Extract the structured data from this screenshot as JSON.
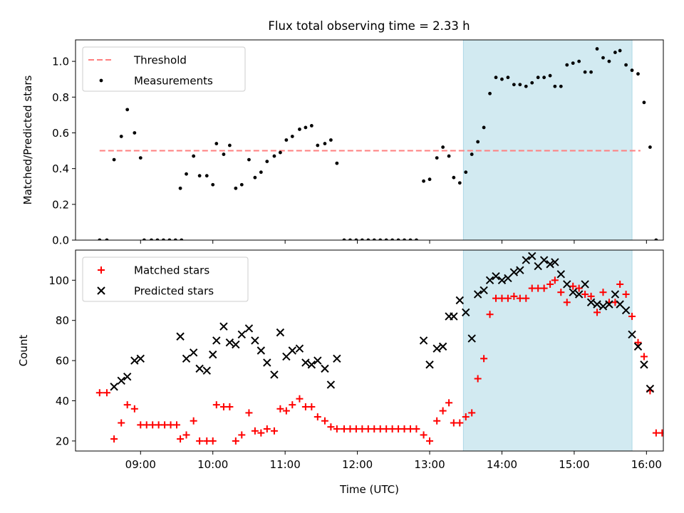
{
  "title": "Flux total observing time = 2.33 h",
  "colors": {
    "threshold": "#ff7f7f",
    "measurements": "#000000",
    "matched": "#ff0000",
    "predicted": "#000000",
    "highlight": "#add8e6"
  },
  "chart_data": [
    {
      "type": "scatter",
      "ylabel": "Matched/Predicted stars",
      "xlabel": "",
      "ylim": [
        0,
        1.12
      ],
      "xlim": [
        "08:06",
        "16:14"
      ],
      "yticks": [
        "0.0",
        "0.2",
        "0.4",
        "0.6",
        "0.8",
        "1.0"
      ],
      "legend": {
        "position": "upper-left",
        "entries": [
          "Threshold",
          "Measurements"
        ]
      },
      "threshold": {
        "name": "Threshold",
        "y": 0.5,
        "x_range": [
          "08:26",
          "15:55"
        ],
        "style": "dashed"
      },
      "highlight_span": [
        "13:28",
        "15:48"
      ],
      "series": [
        {
          "name": "Measurements",
          "points": [
            [
              "08:26",
              0
            ],
            [
              "08:32",
              0
            ],
            [
              "08:38",
              0.45
            ],
            [
              "08:44",
              0.58
            ],
            [
              "08:49",
              0.73
            ],
            [
              "08:55",
              0.6
            ],
            [
              "09:00",
              0.46
            ],
            [
              "09:03",
              0
            ],
            [
              "09:09",
              0
            ],
            [
              "09:14",
              0
            ],
            [
              "09:19",
              0
            ],
            [
              "09:24",
              0
            ],
            [
              "09:29",
              0
            ],
            [
              "09:34",
              0
            ],
            [
              "09:33",
              0.29
            ],
            [
              "09:38",
              0.37
            ],
            [
              "09:44",
              0.47
            ],
            [
              "09:49",
              0.36
            ],
            [
              "09:55",
              0.36
            ],
            [
              "10:00",
              0.31
            ],
            [
              "10:03",
              0.54
            ],
            [
              "10:09",
              0.48
            ],
            [
              "10:14",
              0.53
            ],
            [
              "10:19",
              0.29
            ],
            [
              "10:24",
              0.31
            ],
            [
              "10:30",
              0.45
            ],
            [
              "10:35",
              0.35
            ],
            [
              "10:40",
              0.38
            ],
            [
              "10:45",
              0.44
            ],
            [
              "10:51",
              0.47
            ],
            [
              "10:56",
              0.49
            ],
            [
              "11:01",
              0.56
            ],
            [
              "11:06",
              0.58
            ],
            [
              "11:12",
              0.62
            ],
            [
              "11:17",
              0.63
            ],
            [
              "11:22",
              0.64
            ],
            [
              "11:27",
              0.53
            ],
            [
              "11:33",
              0.54
            ],
            [
              "11:38",
              0.56
            ],
            [
              "11:43",
              0.43
            ],
            [
              "11:49",
              0
            ],
            [
              "11:54",
              0
            ],
            [
              "11:59",
              0
            ],
            [
              "12:04",
              0
            ],
            [
              "12:09",
              0
            ],
            [
              "12:14",
              0
            ],
            [
              "12:19",
              0
            ],
            [
              "12:24",
              0
            ],
            [
              "12:29",
              0
            ],
            [
              "12:34",
              0
            ],
            [
              "12:39",
              0
            ],
            [
              "12:44",
              0
            ],
            [
              "12:49",
              0
            ],
            [
              "12:55",
              0.33
            ],
            [
              "13:00",
              0.34
            ],
            [
              "13:06",
              0.46
            ],
            [
              "13:11",
              0.52
            ],
            [
              "13:16",
              0.47
            ],
            [
              "13:20",
              0.35
            ],
            [
              "13:25",
              0.32
            ],
            [
              "13:30",
              0.38
            ],
            [
              "13:35",
              0.48
            ],
            [
              "13:40",
              0.55
            ],
            [
              "13:45",
              0.63
            ],
            [
              "13:50",
              0.82
            ],
            [
              "13:55",
              0.91
            ],
            [
              "14:00",
              0.9
            ],
            [
              "14:05",
              0.91
            ],
            [
              "14:10",
              0.87
            ],
            [
              "14:15",
              0.87
            ],
            [
              "14:20",
              0.86
            ],
            [
              "14:25",
              0.88
            ],
            [
              "14:30",
              0.91
            ],
            [
              "14:35",
              0.91
            ],
            [
              "14:40",
              0.92
            ],
            [
              "14:44",
              0.86
            ],
            [
              "14:49",
              0.86
            ],
            [
              "14:54",
              0.98
            ],
            [
              "14:59",
              0.99
            ],
            [
              "15:04",
              1.0
            ],
            [
              "15:09",
              0.94
            ],
            [
              "15:14",
              0.94
            ],
            [
              "15:19",
              1.07
            ],
            [
              "15:24",
              1.02
            ],
            [
              "15:29",
              1.0
            ],
            [
              "15:34",
              1.05
            ],
            [
              "15:38",
              1.06
            ],
            [
              "15:43",
              0.98
            ],
            [
              "15:48",
              0.95
            ],
            [
              "15:53",
              0.93
            ],
            [
              "15:58",
              0.77
            ],
            [
              "16:03",
              0.52
            ],
            [
              "16:08",
              0
            ]
          ]
        }
      ]
    },
    {
      "type": "scatter",
      "ylabel": "Count",
      "xlabel": "Time (UTC)",
      "ylim": [
        15,
        115
      ],
      "xlim": [
        "08:06",
        "16:14"
      ],
      "yticks": [
        "20",
        "40",
        "60",
        "80",
        "100"
      ],
      "xticks": [
        "09:00",
        "10:00",
        "11:00",
        "12:00",
        "13:00",
        "14:00",
        "15:00",
        "16:00"
      ],
      "legend": {
        "position": "upper-left",
        "entries": [
          "Matched stars",
          "Predicted stars"
        ]
      },
      "highlight_span": [
        "13:28",
        "15:48"
      ],
      "series": [
        {
          "name": "Matched stars",
          "marker": "+",
          "points": [
            [
              "08:26",
              44
            ],
            [
              "08:32",
              44
            ],
            [
              "08:38",
              21
            ],
            [
              "08:44",
              29
            ],
            [
              "08:49",
              38
            ],
            [
              "08:55",
              36
            ],
            [
              "09:00",
              28
            ],
            [
              "09:05",
              28
            ],
            [
              "09:10",
              28
            ],
            [
              "09:15",
              28
            ],
            [
              "09:20",
              28
            ],
            [
              "09:25",
              28
            ],
            [
              "09:30",
              28
            ],
            [
              "09:33",
              21
            ],
            [
              "09:38",
              23
            ],
            [
              "09:44",
              30
            ],
            [
              "09:49",
              20
            ],
            [
              "09:55",
              20
            ],
            [
              "10:00",
              20
            ],
            [
              "10:03",
              38
            ],
            [
              "10:09",
              37
            ],
            [
              "10:14",
              37
            ],
            [
              "10:19",
              20
            ],
            [
              "10:24",
              23
            ],
            [
              "10:30",
              34
            ],
            [
              "10:35",
              25
            ],
            [
              "10:40",
              24
            ],
            [
              "10:45",
              26
            ],
            [
              "10:51",
              25
            ],
            [
              "10:56",
              36
            ],
            [
              "11:01",
              35
            ],
            [
              "11:06",
              38
            ],
            [
              "11:12",
              41
            ],
            [
              "11:17",
              37
            ],
            [
              "11:22",
              37
            ],
            [
              "11:27",
              32
            ],
            [
              "11:33",
              30
            ],
            [
              "11:38",
              27
            ],
            [
              "11:43",
              26
            ],
            [
              "11:49",
              26
            ],
            [
              "11:54",
              26
            ],
            [
              "11:59",
              26
            ],
            [
              "12:04",
              26
            ],
            [
              "12:09",
              26
            ],
            [
              "12:14",
              26
            ],
            [
              "12:19",
              26
            ],
            [
              "12:24",
              26
            ],
            [
              "12:29",
              26
            ],
            [
              "12:34",
              26
            ],
            [
              "12:39",
              26
            ],
            [
              "12:44",
              26
            ],
            [
              "12:49",
              26
            ],
            [
              "12:55",
              23
            ],
            [
              "13:00",
              20
            ],
            [
              "13:06",
              30
            ],
            [
              "13:11",
              35
            ],
            [
              "13:16",
              39
            ],
            [
              "13:20",
              29
            ],
            [
              "13:25",
              29
            ],
            [
              "13:30",
              32
            ],
            [
              "13:35",
              34
            ],
            [
              "13:40",
              51
            ],
            [
              "13:45",
              61
            ],
            [
              "13:50",
              83
            ],
            [
              "13:55",
              91
            ],
            [
              "14:00",
              91
            ],
            [
              "14:05",
              91
            ],
            [
              "14:10",
              92
            ],
            [
              "14:15",
              91
            ],
            [
              "14:20",
              91
            ],
            [
              "14:25",
              96
            ],
            [
              "14:30",
              96
            ],
            [
              "14:35",
              96
            ],
            [
              "14:40",
              98
            ],
            [
              "14:44",
              100
            ],
            [
              "14:49",
              94
            ],
            [
              "14:54",
              89
            ],
            [
              "14:59",
              97
            ],
            [
              "15:04",
              96
            ],
            [
              "15:09",
              93
            ],
            [
              "15:14",
              92
            ],
            [
              "15:19",
              84
            ],
            [
              "15:24",
              94
            ],
            [
              "15:29",
              89
            ],
            [
              "15:34",
              89
            ],
            [
              "15:38",
              98
            ],
            [
              "15:43",
              93
            ],
            [
              "15:48",
              82
            ],
            [
              "15:53",
              69
            ],
            [
              "15:58",
              62
            ],
            [
              "16:03",
              45
            ],
            [
              "16:08",
              24
            ],
            [
              "16:13",
              24
            ]
          ]
        },
        {
          "name": "Predicted stars",
          "marker": "x",
          "points": [
            [
              "08:38",
              47
            ],
            [
              "08:44",
              50
            ],
            [
              "08:49",
              52
            ],
            [
              "08:55",
              60
            ],
            [
              "09:00",
              61
            ],
            [
              "09:33",
              72
            ],
            [
              "09:38",
              61
            ],
            [
              "09:44",
              64
            ],
            [
              "09:49",
              56
            ],
            [
              "09:55",
              55
            ],
            [
              "10:00",
              63
            ],
            [
              "10:03",
              70
            ],
            [
              "10:09",
              77
            ],
            [
              "10:14",
              69
            ],
            [
              "10:19",
              68
            ],
            [
              "10:24",
              73
            ],
            [
              "10:30",
              76
            ],
            [
              "10:35",
              70
            ],
            [
              "10:40",
              65
            ],
            [
              "10:45",
              59
            ],
            [
              "10:51",
              53
            ],
            [
              "10:56",
              74
            ],
            [
              "11:01",
              62
            ],
            [
              "11:06",
              65
            ],
            [
              "11:12",
              66
            ],
            [
              "11:17",
              59
            ],
            [
              "11:22",
              58
            ],
            [
              "11:27",
              60
            ],
            [
              "11:33",
              56
            ],
            [
              "11:38",
              48
            ],
            [
              "11:43",
              61
            ],
            [
              "12:55",
              70
            ],
            [
              "13:00",
              58
            ],
            [
              "13:06",
              66
            ],
            [
              "13:11",
              67
            ],
            [
              "13:16",
              82
            ],
            [
              "13:20",
              82
            ],
            [
              "13:25",
              90
            ],
            [
              "13:30",
              84
            ],
            [
              "13:35",
              71
            ],
            [
              "13:40",
              93
            ],
            [
              "13:45",
              95
            ],
            [
              "13:50",
              100
            ],
            [
              "13:55",
              102
            ],
            [
              "14:00",
              100
            ],
            [
              "14:05",
              101
            ],
            [
              "14:10",
              104
            ],
            [
              "14:15",
              105
            ],
            [
              "14:20",
              110
            ],
            [
              "14:25",
              112
            ],
            [
              "14:30",
              107
            ],
            [
              "14:35",
              110
            ],
            [
              "14:40",
              108
            ],
            [
              "14:44",
              109
            ],
            [
              "14:49",
              103
            ],
            [
              "14:54",
              98
            ],
            [
              "14:59",
              94
            ],
            [
              "15:04",
              93
            ],
            [
              "15:09",
              98
            ],
            [
              "15:14",
              89
            ],
            [
              "15:19",
              88
            ],
            [
              "15:24",
              87
            ],
            [
              "15:29",
              88
            ],
            [
              "15:34",
              93
            ],
            [
              "15:38",
              88
            ],
            [
              "15:43",
              85
            ],
            [
              "15:48",
              73
            ],
            [
              "15:53",
              67
            ],
            [
              "15:58",
              58
            ],
            [
              "16:03",
              46
            ]
          ]
        }
      ]
    }
  ]
}
